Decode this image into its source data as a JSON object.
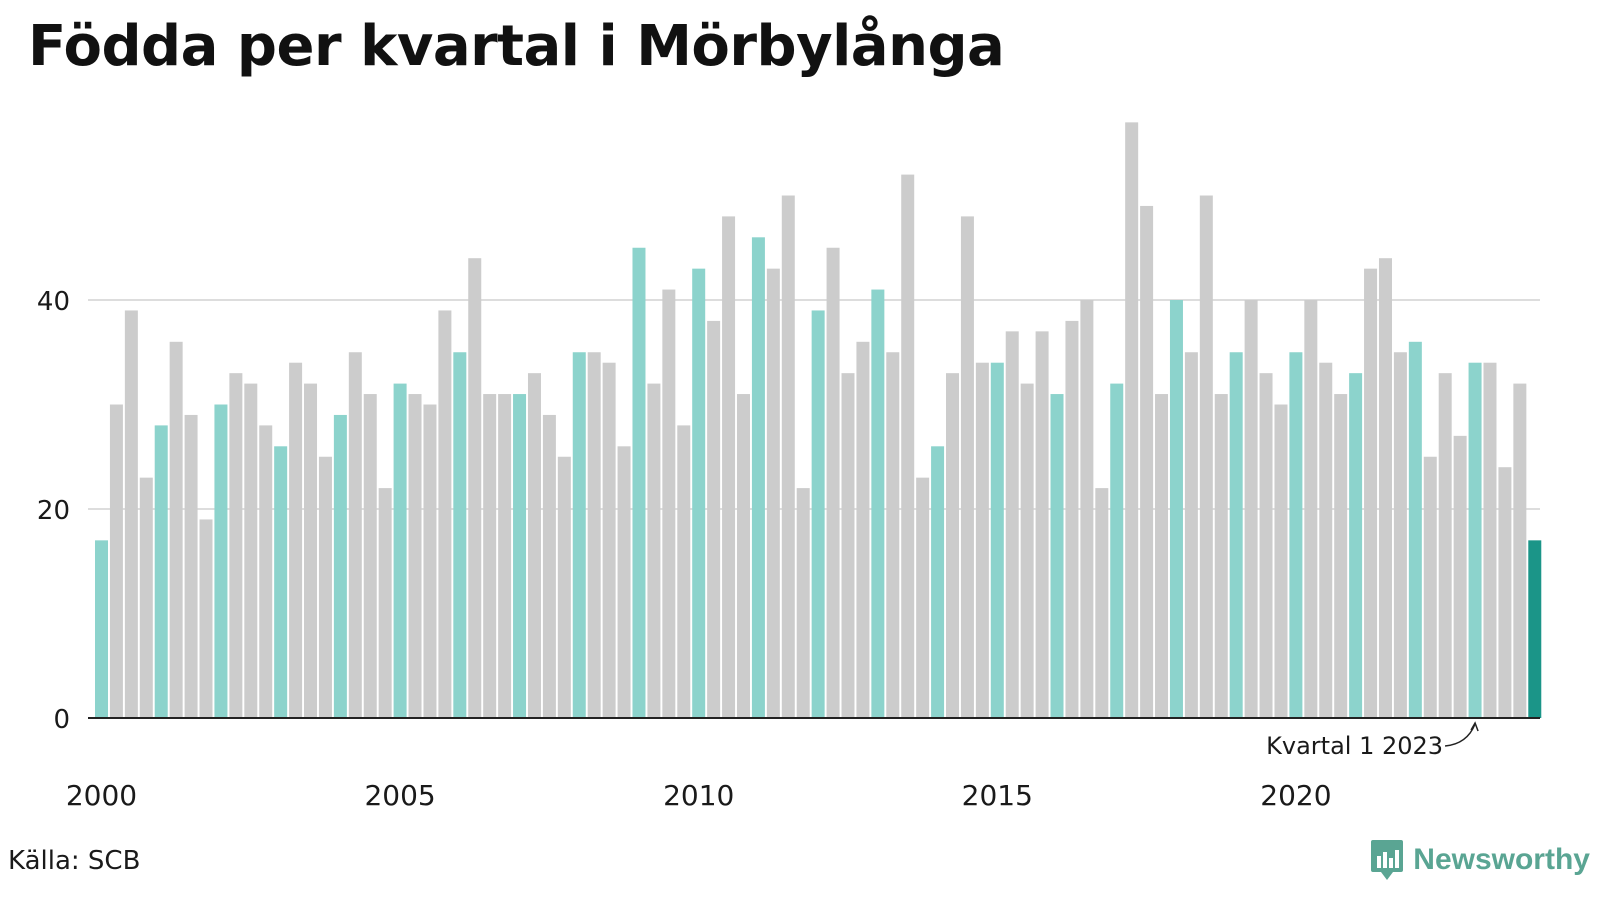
{
  "title": "Födda per kvartal i Mörbylånga",
  "source": "Källa: SCB",
  "brand": "Newsworthy",
  "annotation": "Kvartal 1 2023",
  "colors": {
    "q1": "#8cd3cc",
    "other": "#cccccc",
    "latest": "#1b9588",
    "grid": "#dddddd",
    "axis": "#222222",
    "brand": "#5aa593"
  },
  "chart_data": {
    "type": "bar",
    "title": "Födda per kvartal i Mörbylånga",
    "xlabel": "",
    "ylabel": "",
    "start": "2000 Q1",
    "ylim": [
      0,
      58
    ],
    "yticks": [
      0,
      20,
      40
    ],
    "xticks": [
      "2000",
      "2005",
      "2010",
      "2015",
      "2020"
    ],
    "grid": true,
    "highlight": "Q1 bars in teal, latest quarter in dark teal",
    "values": [
      17,
      30,
      39,
      23,
      28,
      36,
      29,
      19,
      30,
      33,
      32,
      28,
      26,
      34,
      32,
      25,
      29,
      35,
      31,
      22,
      32,
      31,
      30,
      39,
      35,
      44,
      31,
      31,
      31,
      33,
      29,
      25,
      35,
      35,
      34,
      26,
      45,
      32,
      41,
      28,
      43,
      38,
      48,
      31,
      46,
      43,
      50,
      22,
      39,
      45,
      33,
      36,
      41,
      35,
      52,
      23,
      26,
      33,
      48,
      34,
      34,
      37,
      32,
      37,
      31,
      38,
      40,
      22,
      32,
      57,
      49,
      31,
      40,
      35,
      50,
      31,
      35,
      40,
      33,
      30,
      35,
      40,
      34,
      31,
      33,
      43,
      44,
      35,
      36,
      25,
      33,
      27,
      34,
      34,
      24,
      32,
      17
    ]
  }
}
